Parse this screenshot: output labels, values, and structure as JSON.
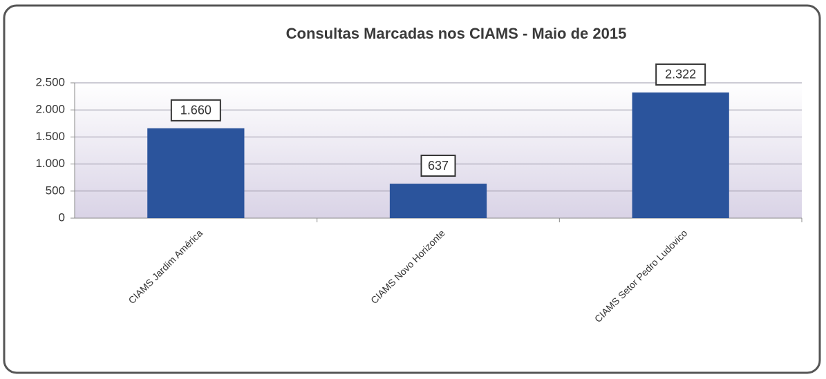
{
  "chart_data": {
    "type": "bar",
    "title": "Consultas Marcadas nos CIAMS - Maio de 2015",
    "categories": [
      "CIAMS Jardim América",
      "CIAMS Novo Horizonte",
      "CIAMS Setor Pedro Ludovico"
    ],
    "values": [
      1660,
      637,
      2322
    ],
    "value_labels": [
      "1.660",
      "637",
      "2.322"
    ],
    "color": "#2b549c",
    "ylim": [
      0,
      2500
    ],
    "yticks": [
      0,
      500,
      {
        "value": 1000,
        "label": "1.000"
      },
      {
        "value": 1500,
        "label": "1.500"
      },
      {
        "value": 2000,
        "label": "2.000"
      },
      {
        "value": 2500,
        "label": "2.500"
      }
    ],
    "grid": true
  }
}
